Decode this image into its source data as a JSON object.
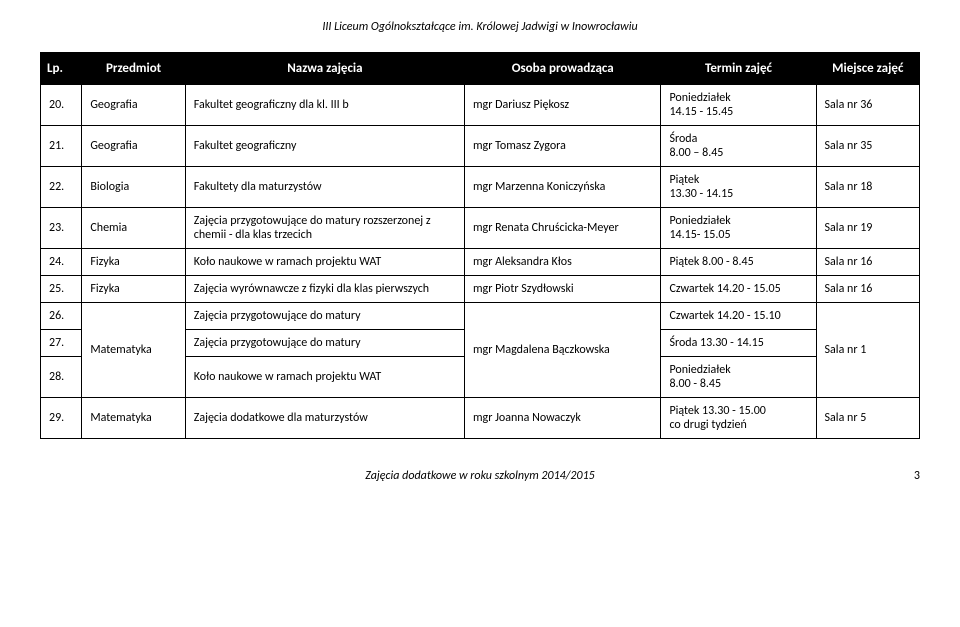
{
  "header": "III Liceum Ogólnokształcące im. Królowej Jadwigi w Inowrocławiu",
  "footer": "Zajęcia dodatkowe w roku szkolnym 2014/2015",
  "page_number": "3",
  "columns": {
    "lp": "Lp.",
    "subject": "Przedmiot",
    "name": "Nazwa zajęcia",
    "person": "Osoba prowadząca",
    "term": "Termin zajęć",
    "place": "Miejsce zajęć"
  },
  "rows": [
    {
      "lp": "20.",
      "subject": "Geografia",
      "name": "Fakultet geograficzny dla kl. III b",
      "person": "mgr Dariusz Piękosz",
      "term": "Poniedziałek\n14.15 - 15.45",
      "place": "Sala nr 36"
    },
    {
      "lp": "21.",
      "subject": "Geografia",
      "name": "Fakultet geograficzny",
      "person": "mgr Tomasz Zygora",
      "term": "Środa\n8.00 – 8.45",
      "place": "Sala nr 35"
    },
    {
      "lp": "22.",
      "subject": "Biologia",
      "name": "Fakultety dla maturzystów",
      "person": "mgr Marzenna Koniczyńska",
      "term": "Piątek\n13.30 - 14.15",
      "place": "Sala nr  18"
    },
    {
      "lp": "23.",
      "subject": "Chemia",
      "name": "Zajęcia przygotowujące do matury rozszerzonej z chemii - dla klas trzecich",
      "person": "mgr Renata Chruścicka-Meyer",
      "term": "Poniedziałek\n14.15- 15.05",
      "place": "Sala nr 19"
    },
    {
      "lp": "24.",
      "subject": "Fizyka",
      "name": "Koło naukowe w ramach projektu WAT",
      "person": "mgr Aleksandra Kłos",
      "term": "Piątek 8.00 - 8.45",
      "place": "Sala nr 16"
    },
    {
      "lp": "25.",
      "subject": "Fizyka",
      "name": "Zajęcia wyrównawcze z fizyki dla klas pierwszych",
      "person": "mgr Piotr Szydłowski",
      "term": "Czwartek 14.20 - 15.05",
      "place": "Sala nr  16"
    },
    {
      "lp": "26.",
      "subject_rowspan": 3,
      "subject": "Matematyka",
      "name": "Zajęcia przygotowujące do matury",
      "person_rowspan": 3,
      "person": "mgr Magdalena Bączkowska",
      "term": "Czwartek 14.20 - 15.10",
      "place_rowspan": 3,
      "place": "Sala  nr 1"
    },
    {
      "lp": "27.",
      "name": "Zajęcia przygotowujące do matury",
      "term": "Środa 13.30 - 14.15"
    },
    {
      "lp": "28.",
      "name": "Koło naukowe w ramach projektu   WAT",
      "term": "Poniedziałek\n8.00 - 8.45"
    },
    {
      "lp": "29.",
      "subject": "Matematyka",
      "name": "Zajęcia dodatkowe dla maturzystów",
      "person": "mgr Joanna Nowaczyk",
      "term": "Piątek 13.30 - 15.00\nco drugi tydzień",
      "place": "Sala nr 5"
    }
  ]
}
